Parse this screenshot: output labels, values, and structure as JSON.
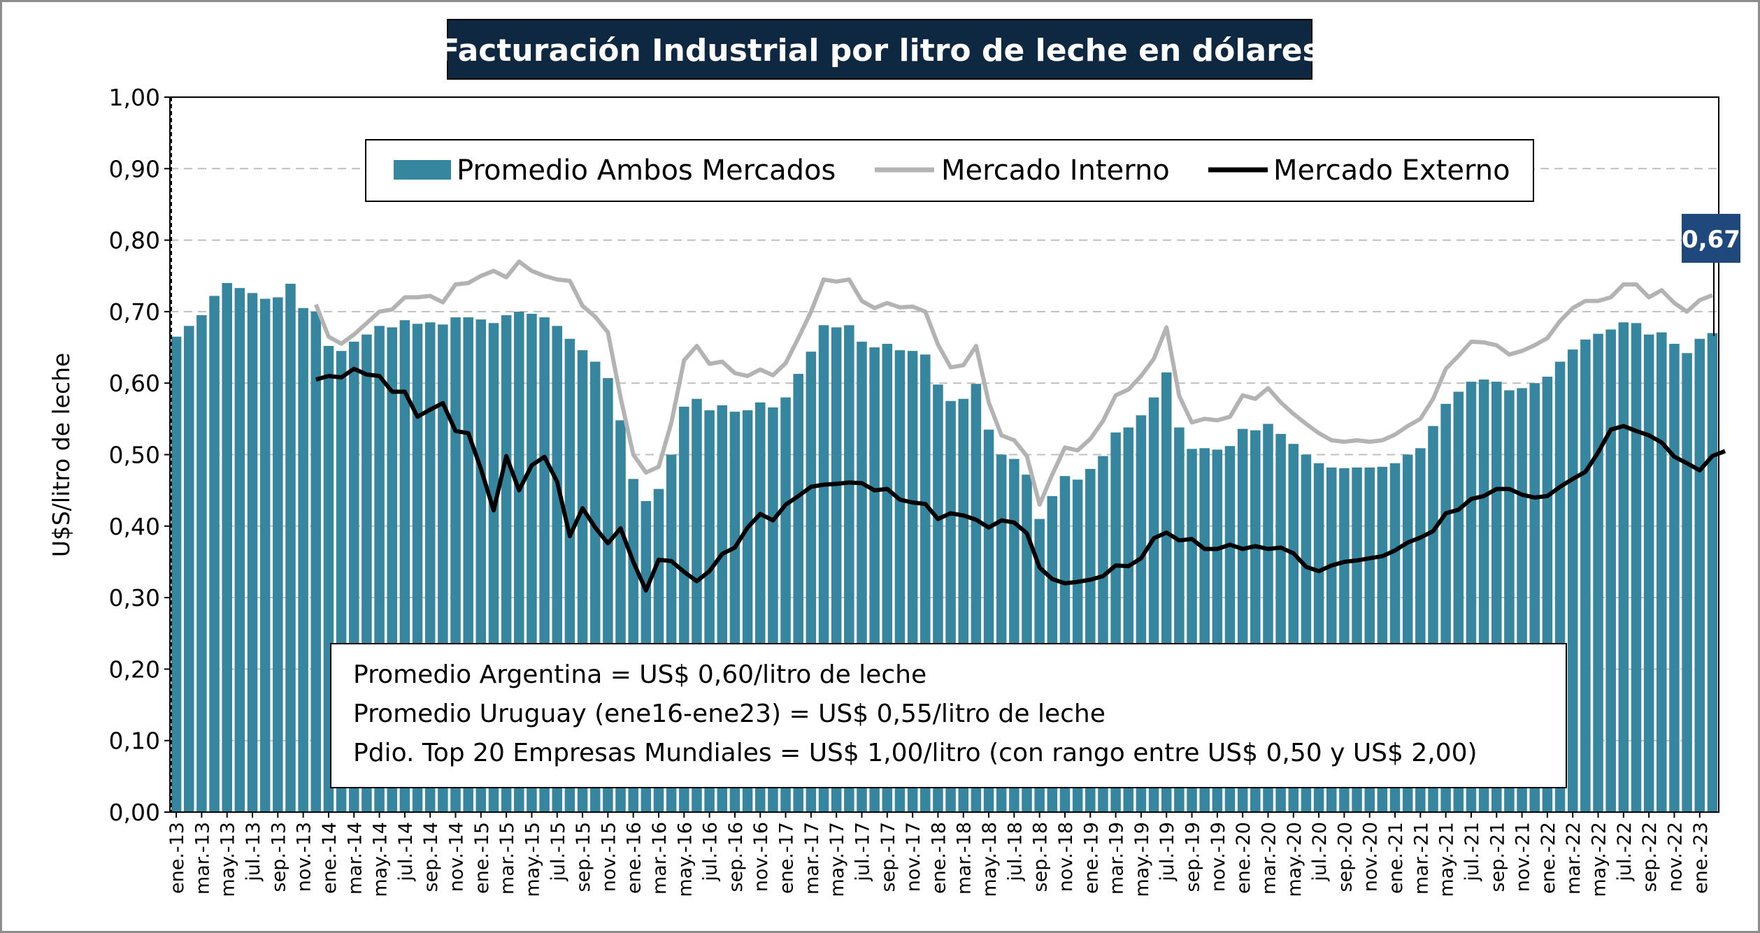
{
  "chart_data": {
    "type": "bar",
    "title": "Facturación Industrial por litro de leche en dólares",
    "ylabel": "U$S/litro de leche",
    "xlabel": "",
    "ylim": [
      0,
      1
    ],
    "yticks": [
      "0,00",
      "0,10",
      "0,20",
      "0,30",
      "0,40",
      "0,50",
      "0,60",
      "0,70",
      "0,80",
      "0,90",
      "1,00"
    ],
    "grid": true,
    "legend_position": "top-center",
    "colors": {
      "bars": "#35869e",
      "interno": "#b3b3b3",
      "externo": "#000000",
      "title_bg": "#0e2841",
      "badge_bg": "#1f497d"
    },
    "start_month": "ene.-13",
    "x_tick_labels": [
      "ene.-13",
      "mar.-13",
      "may.-13",
      "jul.-13",
      "sep.-13",
      "nov.-13",
      "ene.-14",
      "mar.-14",
      "may.-14",
      "jul.-14",
      "sep.-14",
      "nov.-14",
      "ene.-15",
      "mar.-15",
      "may.-15",
      "jul.-15",
      "sep.-15",
      "nov.-15",
      "ene.-16",
      "mar.-16",
      "may.-16",
      "jul.-16",
      "sep.-16",
      "nov.-16",
      "ene.-17",
      "mar.-17",
      "may.-17",
      "jul.-17",
      "sep.-17",
      "nov.-17",
      "ene.-18",
      "mar.-18",
      "may.-18",
      "jul.-18",
      "sep.-18",
      "nov.-18",
      "ene.-19",
      "mar.-19",
      "may.-19",
      "jul.-19",
      "sep.-19",
      "nov.-19",
      "ene.-20",
      "mar.-20",
      "may.-20",
      "jul.-20",
      "sep.-20",
      "nov.-20",
      "ene.-21",
      "mar.-21",
      "may.-21",
      "jul.-21",
      "sep.-21",
      "nov.-21",
      "ene.-22",
      "mar.-22",
      "may.-22",
      "jul.-22",
      "sep.-22",
      "nov.-22",
      "ene.-23"
    ],
    "series": [
      {
        "name": "Promedio Ambos Mercados",
        "kind": "bar",
        "values": [
          0.665,
          0.68,
          0.695,
          0.722,
          0.74,
          0.733,
          0.726,
          0.718,
          0.72,
          0.739,
          0.705,
          0.7,
          0.652,
          0.645,
          0.658,
          0.668,
          0.68,
          0.678,
          0.688,
          0.683,
          0.685,
          0.682,
          0.692,
          0.692,
          0.689,
          0.684,
          0.695,
          0.7,
          0.697,
          0.692,
          0.68,
          0.662,
          0.646,
          0.63,
          0.607,
          0.548,
          0.466,
          0.435,
          0.452,
          0.5,
          0.567,
          0.578,
          0.562,
          0.569,
          0.56,
          0.562,
          0.573,
          0.566,
          0.58,
          0.613,
          0.644,
          0.681,
          0.678,
          0.681,
          0.658,
          0.65,
          0.655,
          0.646,
          0.645,
          0.64,
          0.598,
          0.575,
          0.578,
          0.599,
          0.535,
          0.5,
          0.494,
          0.472,
          0.41,
          0.442,
          0.47,
          0.465,
          0.48,
          0.498,
          0.531,
          0.538,
          0.555,
          0.58,
          0.615,
          0.538,
          0.508,
          0.509,
          0.507,
          0.512,
          0.536,
          0.534,
          0.543,
          0.529,
          0.515,
          0.5,
          0.488,
          0.482,
          0.481,
          0.482,
          0.482,
          0.483,
          0.488,
          0.5,
          0.509,
          0.54,
          0.571,
          0.588,
          0.602,
          0.605,
          0.602,
          0.59,
          0.593,
          0.6,
          0.609,
          0.63,
          0.647,
          0.661,
          0.669,
          0.675,
          0.685,
          0.684,
          0.668,
          0.671,
          0.655,
          0.642,
          0.662,
          0.67
        ]
      },
      {
        "name": "Mercado Interno",
        "kind": "line",
        "start_index": 11,
        "values": [
          0.71,
          0.665,
          0.655,
          0.668,
          0.684,
          0.7,
          0.703,
          0.72,
          0.72,
          0.722,
          0.713,
          0.738,
          0.74,
          0.75,
          0.757,
          0.748,
          0.77,
          0.757,
          0.75,
          0.745,
          0.743,
          0.708,
          0.693,
          0.671,
          0.58,
          0.5,
          0.475,
          0.483,
          0.545,
          0.632,
          0.652,
          0.627,
          0.63,
          0.614,
          0.61,
          0.619,
          0.611,
          0.628,
          0.663,
          0.7,
          0.745,
          0.742,
          0.745,
          0.715,
          0.705,
          0.712,
          0.706,
          0.707,
          0.7,
          0.654,
          0.622,
          0.625,
          0.652,
          0.573,
          0.527,
          0.52,
          0.498,
          0.43,
          0.472,
          0.51,
          0.506,
          0.522,
          0.547,
          0.583,
          0.591,
          0.61,
          0.634,
          0.678,
          0.582,
          0.545,
          0.55,
          0.548,
          0.553,
          0.583,
          0.578,
          0.593,
          0.573,
          0.557,
          0.543,
          0.53,
          0.52,
          0.518,
          0.52,
          0.518,
          0.52,
          0.528,
          0.54,
          0.55,
          0.578,
          0.62,
          0.638,
          0.658,
          0.657,
          0.653,
          0.64,
          0.645,
          0.653,
          0.663,
          0.687,
          0.705,
          0.715,
          0.715,
          0.72,
          0.738,
          0.738,
          0.72,
          0.73,
          0.712,
          0.7,
          0.716,
          0.723
        ]
      },
      {
        "name": "Mercado Externo",
        "kind": "line",
        "start_index": 11,
        "values": [
          0.605,
          0.61,
          0.608,
          0.62,
          0.612,
          0.61,
          0.588,
          0.588,
          0.553,
          0.563,
          0.572,
          0.533,
          0.53,
          0.48,
          0.422,
          0.498,
          0.45,
          0.485,
          0.497,
          0.462,
          0.386,
          0.425,
          0.398,
          0.376,
          0.397,
          0.35,
          0.31,
          0.353,
          0.351,
          0.336,
          0.323,
          0.337,
          0.361,
          0.37,
          0.398,
          0.417,
          0.408,
          0.43,
          0.442,
          0.455,
          0.458,
          0.459,
          0.461,
          0.46,
          0.45,
          0.452,
          0.437,
          0.433,
          0.431,
          0.41,
          0.418,
          0.415,
          0.409,
          0.398,
          0.408,
          0.405,
          0.39,
          0.342,
          0.326,
          0.32,
          0.322,
          0.325,
          0.33,
          0.345,
          0.344,
          0.355,
          0.383,
          0.391,
          0.38,
          0.382,
          0.368,
          0.368,
          0.374,
          0.368,
          0.372,
          0.368,
          0.37,
          0.362,
          0.343,
          0.337,
          0.345,
          0.35,
          0.352,
          0.355,
          0.358,
          0.366,
          0.377,
          0.384,
          0.393,
          0.418,
          0.423,
          0.438,
          0.442,
          0.452,
          0.452,
          0.444,
          0.44,
          0.442,
          0.455,
          0.466,
          0.476,
          0.503,
          0.535,
          0.54,
          0.533,
          0.527,
          0.517,
          0.497,
          0.488,
          0.478,
          0.498,
          0.505
        ]
      }
    ],
    "last_value_label": "0,67",
    "notes": [
      "Promedio Argentina = US$ 0,60/litro de leche",
      "Promedio Uruguay (ene16-ene23) = US$ 0,55/litro de leche",
      "Pdio. Top 20 Empresas Mundiales = US$ 1,00/litro (con rango entre US$ 0,50 y US$ 2,00)"
    ]
  }
}
